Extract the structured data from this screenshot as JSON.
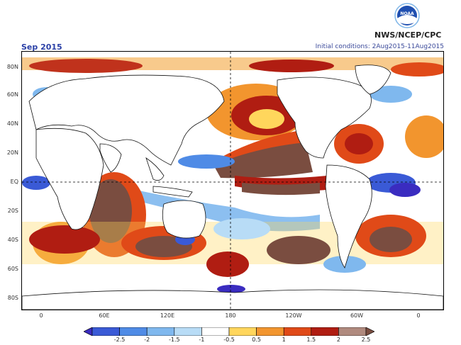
{
  "header": {
    "title": "Sep 2015",
    "initial_conditions": "Initial conditions: 2Aug2015-11Aug2015",
    "agency": "NWS/NCEP/CPC",
    "logo_text": "NOAA"
  },
  "map": {
    "lat_labels": [
      "80N",
      "60N",
      "40N",
      "20N",
      "EQ",
      "20S",
      "40S",
      "60S",
      "80S"
    ],
    "lon_labels": [
      "0",
      "60E",
      "120E",
      "180",
      "120W",
      "60W",
      "0"
    ]
  },
  "colorbar": {
    "labels": [
      "-2.5",
      "-2",
      "-1.5",
      "-1",
      "-0.5",
      "0.5",
      "1",
      "1.5",
      "2",
      "2.5"
    ],
    "colors": [
      "#3a2cc0",
      "#3a5ad6",
      "#4f8be6",
      "#7fb8ee",
      "#b8dcf6",
      "#ffffff",
      "#ffd65c",
      "#f2952e",
      "#e04a18",
      "#b01d12",
      "#b08a7e",
      "#7a4d40"
    ]
  }
}
